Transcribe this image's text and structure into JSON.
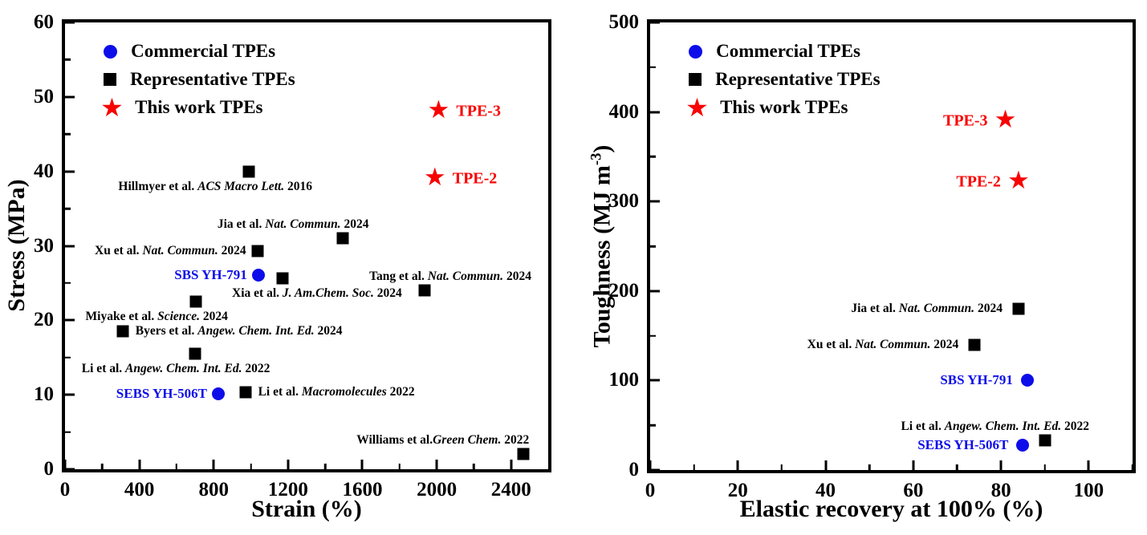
{
  "palette": {
    "red": "#f80202",
    "blue": "#0d0dea",
    "black": "#000000"
  },
  "glyphs": {
    "star": "★"
  },
  "legend": {
    "items": [
      {
        "marker": "circle",
        "color": "blue",
        "label": "Commercial TPEs"
      },
      {
        "marker": "square",
        "color": "black",
        "label": "Representative TPEs"
      },
      {
        "marker": "star",
        "color": "red",
        "label": "This work TPEs"
      }
    ]
  },
  "chart_data": [
    {
      "panel": "left",
      "type": "scatter",
      "title": "",
      "xlabel": "Strain (%)",
      "ylabel": [
        {
          "t": "Stress (MPa)"
        }
      ],
      "xlim": [
        0,
        2600
      ],
      "ylim": [
        0,
        60
      ],
      "xticks": [
        0,
        400,
        800,
        1200,
        1600,
        2000,
        2400
      ],
      "xminor": [
        200,
        600,
        1000,
        1400,
        1800,
        2200
      ],
      "yticks": [
        0,
        10,
        20,
        30,
        40,
        50,
        60
      ],
      "yminor": [
        5,
        15,
        25,
        35,
        45,
        55
      ],
      "grid": false,
      "legend_position": "top-left-inside",
      "points": [
        {
          "x": 2010,
          "y": 48,
          "marker": "star",
          "color": "red",
          "big": true,
          "label": {
            "pre": "TPE-3"
          },
          "side": "right",
          "dx": 6
        },
        {
          "x": 1990,
          "y": 39,
          "marker": "star",
          "color": "red",
          "big": true,
          "label": {
            "pre": "TPE-2"
          },
          "side": "right",
          "dx": 6
        },
        {
          "x": 990,
          "y": 40,
          "marker": "square",
          "color": "black",
          "label": {
            "pre": "Hillmyer et al. ",
            "it": "ACS Macro Lett.",
            "post": " 2016"
          },
          "side": "below",
          "dx": -42
        },
        {
          "x": 1495,
          "y": 31,
          "marker": "square",
          "color": "black",
          "label": {
            "pre": "Jia et al. ",
            "it": "Nat. Commun.",
            "post": " 2024"
          },
          "side": "above",
          "dx": -62
        },
        {
          "x": 1035,
          "y": 29.3,
          "marker": "square",
          "color": "black",
          "label": {
            "pre": "Xu et al. ",
            "it": "Nat. Commun.",
            "post": " 2024"
          },
          "side": "left"
        },
        {
          "x": 1040,
          "y": 26.1,
          "marker": "circle",
          "color": "blue",
          "label": {
            "pre": "SBS YH-791"
          },
          "side": "left"
        },
        {
          "x": 1170,
          "y": 25.6,
          "marker": "square",
          "color": "black",
          "label": {
            "pre": "Xia et al. ",
            "it": "J. Am.Chem. Soc.",
            "post": " 2024"
          },
          "side": "below",
          "dx": 43
        },
        {
          "x": 1935,
          "y": 24,
          "marker": "square",
          "color": "black",
          "label": {
            "pre": "Tang et al. ",
            "it": "Nat. Commun.",
            "post": " 2024"
          },
          "side": "above",
          "dx": 32
        },
        {
          "x": 705,
          "y": 22.5,
          "marker": "square",
          "color": "black",
          "label": {
            "pre": "Miyake et al. ",
            "it": "Science.",
            "post": " 2024"
          },
          "side": "below",
          "dx": -49
        },
        {
          "x": 310,
          "y": 18.5,
          "marker": "square",
          "color": "black",
          "label": {
            "pre": "Byers et al. ",
            "it": "Angew. Chem. Int. Ed.",
            "post": " 2024"
          },
          "side": "right"
        },
        {
          "x": 700,
          "y": 15.5,
          "marker": "square",
          "color": "black",
          "label": {
            "pre": "Li et al. ",
            "it": "Angew. Chem. Int. Ed.",
            "post": " 2022"
          },
          "side": "below",
          "dx": -24
        },
        {
          "x": 825,
          "y": 10.1,
          "marker": "circle",
          "color": "blue",
          "label": {
            "pre": "SEBS YH-506T"
          },
          "side": "left"
        },
        {
          "x": 970,
          "y": 10.3,
          "marker": "square",
          "color": "black",
          "label": {
            "pre": "Li et al. ",
            "it": "Macromolecules",
            "post": " 2022"
          },
          "side": "right"
        },
        {
          "x": 2465,
          "y": 2,
          "marker": "square",
          "color": "black",
          "label": {
            "pre": "Williams et al.",
            "it": "Green Chem.",
            "post": " 2022"
          },
          "side": "above",
          "dx": -100
        }
      ]
    },
    {
      "panel": "right",
      "type": "scatter",
      "title": "",
      "xlabel": "Elastic recovery at 100% (%)",
      "ylabel": [
        {
          "t": "Toughness (MJ m"
        },
        {
          "t": "-3",
          "sup": true
        },
        {
          "t": ")"
        }
      ],
      "xlim": [
        0,
        110
      ],
      "ylim": [
        0,
        500
      ],
      "xticks": [
        0,
        20,
        40,
        60,
        80,
        100
      ],
      "xminor": [
        10,
        30,
        50,
        70,
        90,
        110
      ],
      "yticks": [
        0,
        100,
        200,
        300,
        400,
        500
      ],
      "yminor": [
        50,
        150,
        250,
        350,
        450
      ],
      "grid": false,
      "legend_position": "top-left-inside",
      "points": [
        {
          "x": 81,
          "y": 390,
          "marker": "star",
          "color": "red",
          "big": true,
          "label": {
            "pre": "TPE-3"
          },
          "side": "left",
          "dx": -8
        },
        {
          "x": 84,
          "y": 322,
          "marker": "star",
          "color": "red",
          "big": true,
          "label": {
            "pre": "TPE-2"
          },
          "side": "left",
          "dx": -8
        },
        {
          "x": 84,
          "y": 180,
          "marker": "square",
          "color": "black",
          "label": {
            "pre": "Jia et al. ",
            "it": "Nat. Commun.",
            "post": " 2024"
          },
          "side": "left",
          "dx": -6
        },
        {
          "x": 74,
          "y": 140,
          "marker": "square",
          "color": "black",
          "label": {
            "pre": "Xu et al. ",
            "it": "Nat. Commun.",
            "post": " 2024"
          },
          "side": "left",
          "dx": -6
        },
        {
          "x": 86,
          "y": 100,
          "marker": "circle",
          "color": "blue",
          "label": {
            "pre": "SBS YH-791"
          },
          "side": "left",
          "dx": -4
        },
        {
          "x": 90,
          "y": 33,
          "marker": "square",
          "color": "black",
          "label": {
            "pre": "Li et al. ",
            "it": "Angew. Chem. Int. Ed.",
            "post": " 2022"
          },
          "side": "above",
          "dx": -62
        },
        {
          "x": 85,
          "y": 28,
          "marker": "circle",
          "color": "blue",
          "label": {
            "pre": "SEBS YH-506T"
          },
          "side": "left",
          "dx": -4
        }
      ]
    }
  ]
}
